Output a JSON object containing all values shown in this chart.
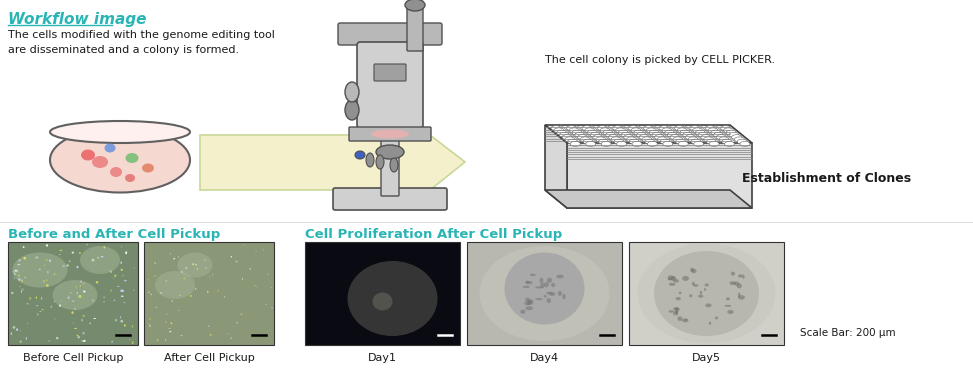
{
  "title": "Workflow image",
  "title_color": "#2ab5b5",
  "bg_color": "#ffffff",
  "top_left_text": "The cells modified with the genome editing tool\nare disseminated and a colony is formed.",
  "top_right_text": "The cell colony is picked by CELL PICKER.",
  "establishment_text": "Establishment of Clones",
  "section1_title": "Before and After Cell Pickup",
  "section2_title": "Cell Proliferation After Cell Pickup",
  "section_title_color": "#2ab5b5",
  "scale_bar_text": "Scale Bar: 200 μm",
  "bottom_labels": [
    "Before Cell Pickup",
    "After Cell Pickup",
    "Day1",
    "Day4",
    "Day5"
  ],
  "arrow_fill": "#f5f0cc",
  "arrow_border": "#c8d898",
  "text_color": "#1a1a1a",
  "label_color": "#1a1a1a",
  "fig_width": 9.73,
  "fig_height": 3.74,
  "dpi": 100
}
